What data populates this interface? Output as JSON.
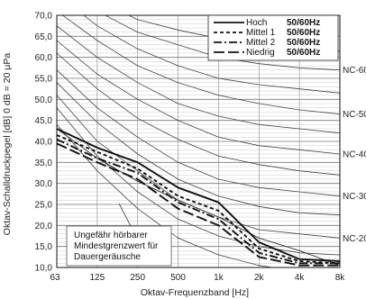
{
  "chart_data": {
    "type": "line",
    "xlabel": "Oktav-Frequenzband [Hz]",
    "ylabel": "Oktav-Schalldruckpegel [dB] 0 dB = 20 µPa",
    "x_ticks": [
      "63",
      "125",
      "250",
      "500",
      "1k",
      "2k",
      "4k",
      "8k"
    ],
    "x_values": [
      63,
      125,
      250,
      500,
      1000,
      2000,
      4000,
      8000
    ],
    "y_ticks": [
      "10,0",
      "15,0",
      "20,0",
      "25,0",
      "30,0",
      "35,0",
      "40,0",
      "45,0",
      "50,0",
      "55,0",
      "60,0",
      "65,0",
      "70,0"
    ],
    "ylim": [
      10,
      70
    ],
    "x_scale": "log",
    "grid": "horizontal",
    "legend_position": "top-right",
    "series": [
      {
        "name": "Hoch",
        "hz": "50/60Hz",
        "style": "solid",
        "values": [
          43.0,
          38.5,
          35.0,
          29.0,
          25.5,
          16.0,
          12.0,
          11.5
        ]
      },
      {
        "name": "Mittel 1",
        "hz": "50/60Hz",
        "style": "dashed",
        "values": [
          41.5,
          37.5,
          33.5,
          27.0,
          23.5,
          14.5,
          11.5,
          11.0
        ]
      },
      {
        "name": "Mittel 2",
        "hz": "50/60Hz",
        "style": "dashdot",
        "values": [
          40.5,
          36.0,
          32.5,
          25.5,
          21.5,
          13.5,
          11.0,
          11.0
        ]
      },
      {
        "name": "Niedrig",
        "hz": "50/60Hz",
        "style": "longdash",
        "values": [
          39.5,
          35.0,
          31.0,
          24.0,
          20.0,
          12.5,
          10.5,
          10.5
        ]
      }
    ],
    "nc_curves": [
      {
        "label": "",
        "values": [
          73.0,
          72.0,
          71.5,
          71.0,
          70.5,
          70.2,
          70.0,
          70.0
        ]
      },
      {
        "label": "",
        "values": [
          78.0,
          73.5,
          69.0,
          66.5,
          64.5,
          63.0,
          62.0,
          61.5
        ]
      },
      {
        "label": "NC-60",
        "values": [
          77.0,
          71.0,
          66.0,
          63.0,
          60.0,
          58.5,
          57.5,
          57.0
        ]
      },
      {
        "label": "",
        "values": [
          75.0,
          67.5,
          62.0,
          58.0,
          55.0,
          53.5,
          52.5,
          51.5
        ]
      },
      {
        "label": "NC-50",
        "values": [
          71.0,
          64.0,
          58.0,
          54.0,
          51.0,
          49.0,
          47.5,
          46.5
        ]
      },
      {
        "label": "",
        "values": [
          67.5,
          60.0,
          54.0,
          49.0,
          46.0,
          44.0,
          43.0,
          42.0
        ]
      },
      {
        "label": "NC-40",
        "values": [
          64.0,
          56.0,
          50.0,
          45.0,
          41.0,
          39.0,
          38.0,
          37.0
        ]
      },
      {
        "label": "",
        "values": [
          61.0,
          52.5,
          45.5,
          40.5,
          36.5,
          34.5,
          33.0,
          32.0
        ]
      },
      {
        "label": "NC-30",
        "values": [
          57.0,
          48.0,
          41.0,
          35.0,
          31.0,
          29.0,
          28.0,
          27.0
        ]
      },
      {
        "label": "",
        "values": [
          54.0,
          44.5,
          37.0,
          31.0,
          27.0,
          24.5,
          23.0,
          22.5
        ]
      },
      {
        "label": "NC-20",
        "values": [
          51.0,
          40.0,
          33.0,
          26.0,
          22.0,
          19.0,
          18.0,
          17.0
        ]
      },
      {
        "label": "",
        "values": [
          48.0,
          36.5,
          28.0,
          21.5,
          17.5,
          15.0,
          13.5,
          13.0
        ]
      },
      {
        "label": "",
        "values": [
          44.0,
          33.0,
          24.0,
          17.0,
          13.0,
          10.5,
          9.0,
          8.5
        ]
      }
    ],
    "threshold_curve": {
      "values": [
        43.0,
        36.0,
        30.5,
        26.0,
        22.0,
        17.0,
        14.0,
        10.5
      ]
    },
    "annotation": {
      "lines": [
        "Ungefähr hörbarer",
        "Mindestgrenzwert für",
        "Dauergeräusche"
      ]
    }
  }
}
